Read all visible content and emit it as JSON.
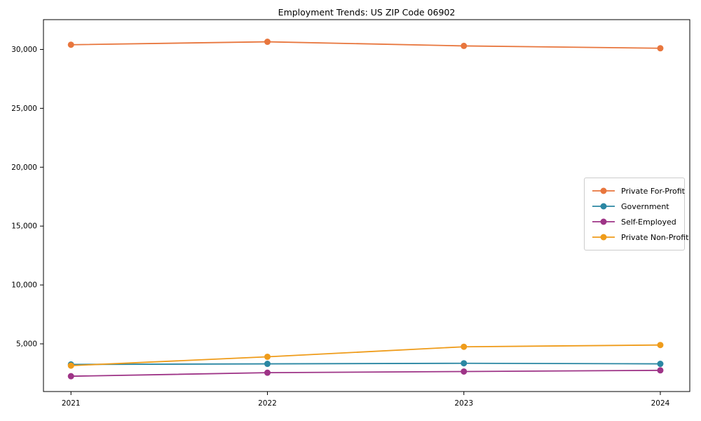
{
  "window": {
    "title": "Employment Trends: US ZIP Code 06902"
  },
  "chart_data": {
    "type": "line",
    "title": "Employment Trends: US ZIP Code 06902",
    "xlabel": "",
    "ylabel": "",
    "grid": false,
    "legend_position": "center-right",
    "x": [
      2021,
      2022,
      2023,
      2024
    ],
    "xticks": [
      "2021",
      "2022",
      "2023",
      "2024"
    ],
    "yticks": [
      5000,
      10000,
      15000,
      20000,
      25000,
      30000
    ],
    "ytick_labels": [
      "5,000",
      "10,000",
      "15,000",
      "20,000",
      "25,000",
      "30,000"
    ],
    "xlim": [
      2020.86,
      2024.15
    ],
    "ylim": [
      950,
      32530
    ],
    "series": [
      {
        "name": "Private For-Profit",
        "color": "#e8763d",
        "values": [
          30400,
          30650,
          30300,
          30100
        ]
      },
      {
        "name": "Government",
        "color": "#2b87a3",
        "values": [
          3250,
          3300,
          3350,
          3300
        ]
      },
      {
        "name": "Self-Employed",
        "color": "#9e3487",
        "values": [
          2250,
          2550,
          2650,
          2750
        ]
      },
      {
        "name": "Private Non-Profit",
        "color": "#ef9c1b",
        "values": [
          3150,
          3900,
          4750,
          4900
        ]
      }
    ],
    "marker": "circle",
    "marker_radius": 4.5,
    "line_width": 1.8
  }
}
